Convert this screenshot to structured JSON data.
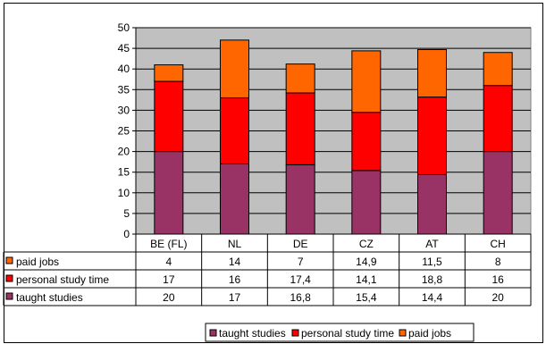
{
  "chart_data": {
    "type": "bar",
    "stacked": true,
    "categories": [
      "BE (FL)",
      "NL",
      "DE",
      "CZ",
      "AT",
      "CH"
    ],
    "series": [
      {
        "name": "taught studies",
        "color": "#993366",
        "values": [
          20,
          17,
          16.8,
          15.4,
          14.4,
          20
        ]
      },
      {
        "name": "personal study time",
        "color": "#ff0000",
        "values": [
          17,
          16,
          17.4,
          14.1,
          18.8,
          16
        ]
      },
      {
        "name": "paid jobs",
        "color": "#ff6600",
        "values": [
          4,
          14,
          7,
          14.9,
          11.5,
          8
        ]
      }
    ],
    "table_rows": [
      {
        "series": 2,
        "label": "paid jobs",
        "cells": [
          "4",
          "14",
          "7",
          "14,9",
          "11,5",
          "8"
        ]
      },
      {
        "series": 1,
        "label": "personal study time",
        "cells": [
          "17",
          "16",
          "17,4",
          "14,1",
          "18,8",
          "16"
        ]
      },
      {
        "series": 0,
        "label": "taught studies",
        "cells": [
          "20",
          "17",
          "16,8",
          "15,4",
          "14,4",
          "20"
        ]
      }
    ],
    "yticks": [
      "0",
      "5",
      "10",
      "15",
      "20",
      "25",
      "30",
      "35",
      "40",
      "45",
      "50"
    ],
    "ylim": [
      0,
      50
    ],
    "plot_bg": "#c0c0c0",
    "grid": true,
    "legend_position": "bottom"
  }
}
